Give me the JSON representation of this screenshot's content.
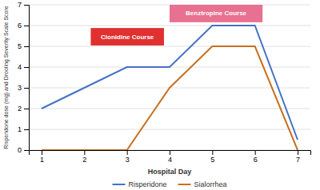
{
  "chart_data": {
    "type": "line",
    "xlabel": "Hospital Day",
    "ylabel": "Risperidone dose (mg) and Drooling Severity Scale Score",
    "x": [
      1,
      2,
      3,
      4,
      5,
      6,
      7
    ],
    "series": [
      {
        "name": "Risperidone",
        "color": "#4472c4",
        "values": [
          2,
          3,
          4,
          4,
          6,
          6,
          0.5
        ]
      },
      {
        "name": "Sialorrhea",
        "color": "#c87020",
        "values": [
          0,
          0,
          0,
          3,
          5,
          5,
          0
        ]
      }
    ],
    "xlim": [
      0.7,
      7.3
    ],
    "xticks": [
      1,
      2,
      3,
      4,
      5,
      6,
      7
    ],
    "ylim": [
      0,
      7
    ],
    "yticks": [
      0,
      1,
      2,
      3,
      4,
      5,
      6,
      7
    ],
    "grid": true,
    "legend": "bottom",
    "annotations": [
      {
        "text": "Clonidine Course",
        "color": "#e03030"
      },
      {
        "text": "Benztropine Course",
        "color": "#e87090"
      }
    ]
  }
}
